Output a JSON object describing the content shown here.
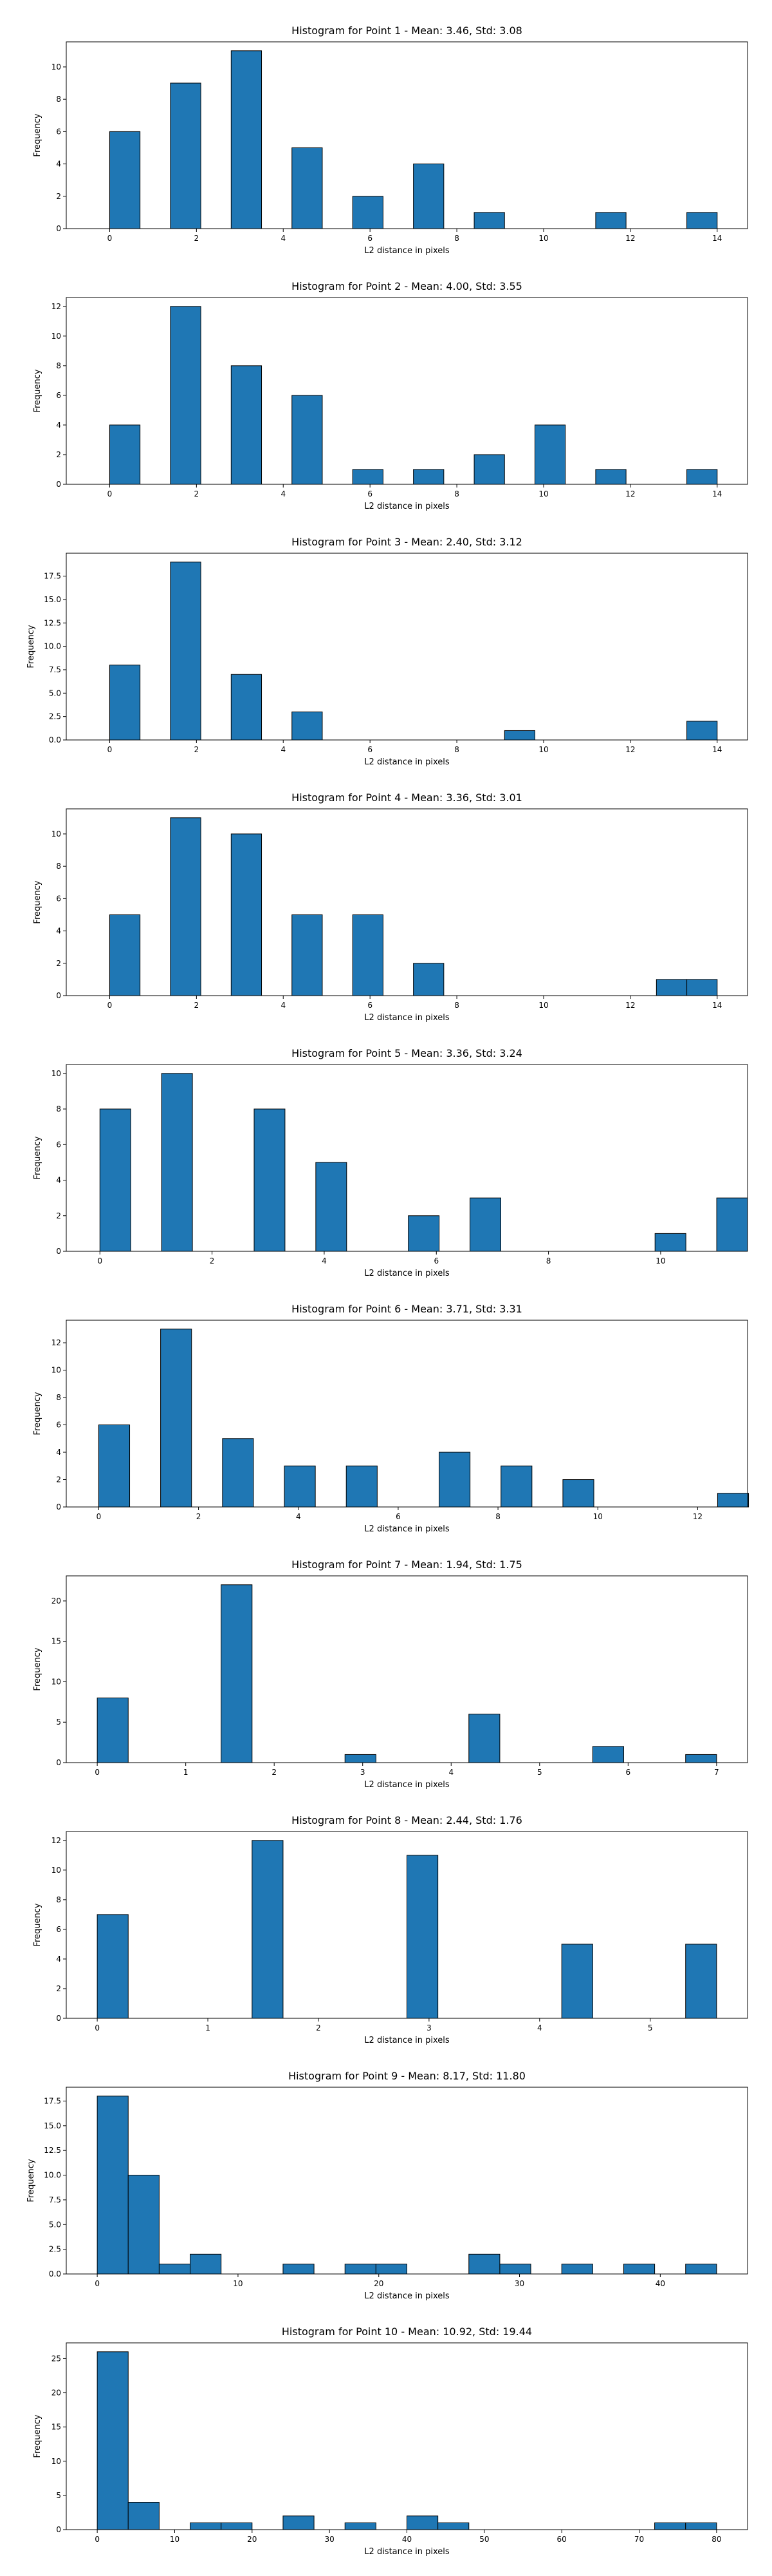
{
  "chart_data": [
    {
      "type": "bar",
      "title": "Histogram for Point 1 - Mean: 3.46, Std: 3.08",
      "xlabel": "L2 distance in pixels",
      "ylabel": "Frequency",
      "xlim": [
        -1.0,
        14.7
      ],
      "ylim": [
        0,
        11.55
      ],
      "xticks": [
        0,
        2,
        4,
        6,
        8,
        10,
        12,
        14
      ],
      "yticks": [
        0,
        2,
        4,
        6,
        8,
        10
      ],
      "bin_width": 0.7,
      "bars": [
        {
          "x0": 0.0,
          "value": 6
        },
        {
          "x0": 1.4,
          "value": 9
        },
        {
          "x0": 2.8,
          "value": 11
        },
        {
          "x0": 4.2,
          "value": 5
        },
        {
          "x0": 5.6,
          "value": 2
        },
        {
          "x0": 7.0,
          "value": 4
        },
        {
          "x0": 8.4,
          "value": 1
        },
        {
          "x0": 11.2,
          "value": 1
        },
        {
          "x0": 13.3,
          "value": 1
        }
      ],
      "color": "#1f77b4",
      "edgecolor": "#000000"
    },
    {
      "type": "bar",
      "title": "Histogram for Point 2 - Mean: 4.00, Std: 3.55",
      "xlabel": "L2 distance in pixels",
      "ylabel": "Frequency",
      "xlim": [
        -1.0,
        14.7
      ],
      "ylim": [
        0,
        12.6
      ],
      "xticks": [
        0,
        2,
        4,
        6,
        8,
        10,
        12,
        14
      ],
      "yticks": [
        0,
        2,
        4,
        6,
        8,
        10,
        12
      ],
      "bin_width": 0.7,
      "bars": [
        {
          "x0": 0.0,
          "value": 4
        },
        {
          "x0": 1.4,
          "value": 12
        },
        {
          "x0": 2.8,
          "value": 8
        },
        {
          "x0": 4.2,
          "value": 6
        },
        {
          "x0": 5.6,
          "value": 1
        },
        {
          "x0": 7.0,
          "value": 1
        },
        {
          "x0": 8.4,
          "value": 2
        },
        {
          "x0": 9.8,
          "value": 4
        },
        {
          "x0": 11.2,
          "value": 1
        },
        {
          "x0": 13.3,
          "value": 1
        }
      ],
      "color": "#1f77b4",
      "edgecolor": "#000000"
    },
    {
      "type": "bar",
      "title": "Histogram for Point 3 - Mean: 2.40, Std: 3.12",
      "xlabel": "L2 distance in pixels",
      "ylabel": "Frequency",
      "xlim": [
        -1.0,
        14.7
      ],
      "ylim": [
        0,
        19.95
      ],
      "xticks": [
        0,
        2,
        4,
        6,
        8,
        10,
        12,
        14
      ],
      "yticks": [
        0.0,
        2.5,
        5.0,
        7.5,
        10.0,
        12.5,
        15.0,
        17.5
      ],
      "ytick_decimals": 1,
      "bin_width": 0.7,
      "bars": [
        {
          "x0": 0.0,
          "value": 8
        },
        {
          "x0": 1.4,
          "value": 19
        },
        {
          "x0": 2.8,
          "value": 7
        },
        {
          "x0": 4.2,
          "value": 3
        },
        {
          "x0": 9.1,
          "value": 1
        },
        {
          "x0": 13.3,
          "value": 2
        }
      ],
      "color": "#1f77b4",
      "edgecolor": "#000000"
    },
    {
      "type": "bar",
      "title": "Histogram for Point 4 - Mean: 3.36, Std: 3.01",
      "xlabel": "L2 distance in pixels",
      "ylabel": "Frequency",
      "xlim": [
        -1.0,
        14.7
      ],
      "ylim": [
        0,
        11.55
      ],
      "xticks": [
        0,
        2,
        4,
        6,
        8,
        10,
        12,
        14
      ],
      "yticks": [
        0,
        2,
        4,
        6,
        8,
        10
      ],
      "bin_width": 0.7,
      "bars": [
        {
          "x0": 0.0,
          "value": 5
        },
        {
          "x0": 1.4,
          "value": 11
        },
        {
          "x0": 2.8,
          "value": 10
        },
        {
          "x0": 4.2,
          "value": 5
        },
        {
          "x0": 5.6,
          "value": 5
        },
        {
          "x0": 7.0,
          "value": 2
        },
        {
          "x0": 12.6,
          "value": 1
        },
        {
          "x0": 13.3,
          "value": 1
        }
      ],
      "color": "#1f77b4",
      "edgecolor": "#000000"
    },
    {
      "type": "bar",
      "title": "Histogram for Point 5 - Mean: 3.36, Std: 3.24",
      "xlabel": "L2 distance in pixels",
      "ylabel": "Frequency",
      "xlim": [
        -0.6,
        11.55
      ],
      "ylim": [
        0,
        10.5
      ],
      "xticks": [
        0,
        2,
        4,
        6,
        8,
        10
      ],
      "yticks": [
        0,
        2,
        4,
        6,
        8,
        10
      ],
      "bin_width": 0.55,
      "bars": [
        {
          "x0": 0.0,
          "value": 8
        },
        {
          "x0": 1.1,
          "value": 10
        },
        {
          "x0": 2.75,
          "value": 8
        },
        {
          "x0": 3.85,
          "value": 5
        },
        {
          "x0": 5.5,
          "value": 2
        },
        {
          "x0": 6.6,
          "value": 3
        },
        {
          "x0": 9.9,
          "value": 1
        },
        {
          "x0": 11.0,
          "value": 3
        }
      ],
      "color": "#1f77b4",
      "edgecolor": "#000000"
    },
    {
      "type": "bar",
      "title": "Histogram for Point 6 - Mean: 3.71, Std: 3.31",
      "xlabel": "L2 distance in pixels",
      "ylabel": "Frequency",
      "xlim": [
        -0.65,
        13.0
      ],
      "ylim": [
        0,
        13.65
      ],
      "xticks": [
        0,
        2,
        4,
        6,
        8,
        10,
        12
      ],
      "yticks": [
        0,
        2,
        4,
        6,
        8,
        10,
        12
      ],
      "bin_width": 0.62,
      "bars": [
        {
          "x0": 0.0,
          "value": 6
        },
        {
          "x0": 1.24,
          "value": 13
        },
        {
          "x0": 2.48,
          "value": 5
        },
        {
          "x0": 3.72,
          "value": 3
        },
        {
          "x0": 4.96,
          "value": 3
        },
        {
          "x0": 6.82,
          "value": 4
        },
        {
          "x0": 8.06,
          "value": 3
        },
        {
          "x0": 9.3,
          "value": 2
        },
        {
          "x0": 12.4,
          "value": 1
        }
      ],
      "color": "#1f77b4",
      "edgecolor": "#000000"
    },
    {
      "type": "bar",
      "title": "Histogram for Point 7 - Mean: 1.94, Std: 1.75",
      "xlabel": "L2 distance in pixels",
      "ylabel": "Frequency",
      "xlim": [
        -0.35,
        7.35
      ],
      "ylim": [
        0,
        23.1
      ],
      "xticks": [
        0,
        1,
        2,
        3,
        4,
        5,
        6,
        7
      ],
      "yticks": [
        0,
        5,
        10,
        15,
        20
      ],
      "bin_width": 0.35,
      "bars": [
        {
          "x0": 0.0,
          "value": 8
        },
        {
          "x0": 1.4,
          "value": 22
        },
        {
          "x0": 2.8,
          "value": 1
        },
        {
          "x0": 4.2,
          "value": 6
        },
        {
          "x0": 5.6,
          "value": 2
        },
        {
          "x0": 6.65,
          "value": 1
        }
      ],
      "color": "#1f77b4",
      "edgecolor": "#000000"
    },
    {
      "type": "bar",
      "title": "Histogram for Point 8 - Mean: 2.44, Std: 1.76",
      "xlabel": "L2 distance in pixels",
      "ylabel": "Frequency",
      "xlim": [
        -0.28,
        5.88
      ],
      "ylim": [
        0,
        12.6
      ],
      "xticks": [
        0,
        1,
        2,
        3,
        4,
        5
      ],
      "yticks": [
        0,
        2,
        4,
        6,
        8,
        10,
        12
      ],
      "bin_width": 0.28,
      "bars": [
        {
          "x0": 0.0,
          "value": 7
        },
        {
          "x0": 1.4,
          "value": 12
        },
        {
          "x0": 2.8,
          "value": 11
        },
        {
          "x0": 4.2,
          "value": 5
        },
        {
          "x0": 5.32,
          "value": 5
        }
      ],
      "color": "#1f77b4",
      "edgecolor": "#000000"
    },
    {
      "type": "bar",
      "title": "Histogram for Point 9 - Mean: 8.17, Std: 11.80",
      "xlabel": "L2 distance in pixels",
      "ylabel": "Frequency",
      "xlim": [
        -2.2,
        46.2
      ],
      "ylim": [
        0,
        18.9
      ],
      "xticks": [
        0,
        10,
        20,
        30,
        40
      ],
      "yticks": [
        0.0,
        2.5,
        5.0,
        7.5,
        10.0,
        12.5,
        15.0,
        17.5
      ],
      "ytick_decimals": 1,
      "bin_width": 2.2,
      "bars": [
        {
          "x0": 0.0,
          "value": 18
        },
        {
          "x0": 2.2,
          "value": 10
        },
        {
          "x0": 4.4,
          "value": 1
        },
        {
          "x0": 6.6,
          "value": 2
        },
        {
          "x0": 13.2,
          "value": 1
        },
        {
          "x0": 17.6,
          "value": 1
        },
        {
          "x0": 19.8,
          "value": 1
        },
        {
          "x0": 26.4,
          "value": 2
        },
        {
          "x0": 28.6,
          "value": 1
        },
        {
          "x0": 33.0,
          "value": 1
        },
        {
          "x0": 37.4,
          "value": 1
        },
        {
          "x0": 41.8,
          "value": 1
        }
      ],
      "color": "#1f77b4",
      "edgecolor": "#000000"
    },
    {
      "type": "bar",
      "title": "Histogram for Point 10 - Mean: 10.92, Std: 19.44",
      "xlabel": "L2 distance in pixels",
      "ylabel": "Frequency",
      "xlim": [
        -4.0,
        84.0
      ],
      "ylim": [
        0,
        27.3
      ],
      "xticks": [
        0,
        10,
        20,
        30,
        40,
        50,
        60,
        70,
        80
      ],
      "yticks": [
        0,
        5,
        10,
        15,
        20,
        25
      ],
      "bin_width": 4.0,
      "bars": [
        {
          "x0": 0.0,
          "value": 26
        },
        {
          "x0": 4.0,
          "value": 4
        },
        {
          "x0": 12.0,
          "value": 1
        },
        {
          "x0": 16.0,
          "value": 1
        },
        {
          "x0": 24.0,
          "value": 2
        },
        {
          "x0": 32.0,
          "value": 1
        },
        {
          "x0": 40.0,
          "value": 2
        },
        {
          "x0": 44.0,
          "value": 1
        },
        {
          "x0": 72.0,
          "value": 1
        },
        {
          "x0": 76.0,
          "value": 1
        }
      ],
      "color": "#1f77b4",
      "edgecolor": "#000000"
    }
  ]
}
